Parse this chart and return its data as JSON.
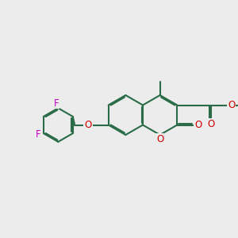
{
  "bg": "#ececec",
  "bc": "#2a6b48",
  "Oc": "#cc0000",
  "Fc": "#cc00cc",
  "lw": 1.5,
  "dbo": 0.06,
  "bl": 1.0,
  "fs": 8.5,
  "figsize": [
    3.0,
    3.0
  ],
  "dpi": 100,
  "xlim": [
    0,
    12
  ],
  "ylim": [
    0,
    12
  ]
}
